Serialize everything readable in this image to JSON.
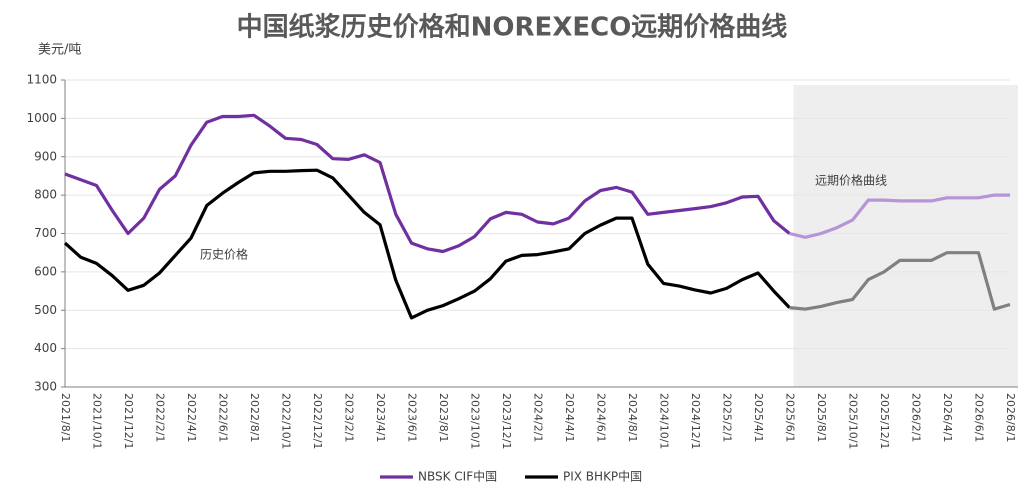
{
  "chart_data": {
    "type": "line",
    "title": "中国纸浆历史价格和NOREXECO远期价格曲线",
    "y_label": "美元/吨",
    "categories": [
      "2021/8/1",
      null,
      "2021/10/1",
      null,
      "2021/12/1",
      null,
      "2022/2/1",
      null,
      "2022/4/1",
      null,
      "2022/6/1",
      null,
      "2022/8/1",
      null,
      "2022/10/1",
      null,
      "2022/12/1",
      null,
      "2023/2/1",
      null,
      "2023/4/1",
      null,
      "2023/6/1",
      null,
      "2023/8/1",
      null,
      "2023/10/1",
      null,
      "2023/12/1",
      null,
      "2024/2/1",
      null,
      "2024/4/1",
      null,
      "2024/6/1",
      null,
      "2024/8/1",
      null,
      "2024/10/1",
      null,
      "2024/12/1",
      null,
      "2025/2/1",
      null,
      "2025/4/1",
      null,
      "2025/6/1",
      null,
      "2025/8/1",
      null,
      "2025/10/1",
      null,
      "2025/12/1",
      null,
      "2026/2/1",
      null,
      "2026/4/1",
      null,
      "2026/6/1",
      null,
      "2026/8/1"
    ],
    "series": [
      {
        "name": "NBSK CIF中国",
        "color": "#7030a0",
        "forward_color": "#b793d8",
        "values": [
          855,
          840,
          825,
          760,
          700,
          740,
          815,
          850,
          930,
          990,
          1005,
          1005,
          1008,
          980,
          948,
          945,
          932,
          895,
          893,
          905,
          885,
          750,
          675,
          660,
          653,
          668,
          692,
          738,
          755,
          750,
          730,
          725,
          740,
          785,
          812,
          820,
          808,
          750,
          755,
          760,
          765,
          770,
          780,
          795,
          797,
          733,
          700,
          690,
          700,
          715,
          735,
          787,
          787,
          785,
          785,
          785,
          793,
          793,
          793,
          800,
          800
        ]
      },
      {
        "name": "PIX BHKP中国",
        "color": "#000000",
        "forward_color": "#808080",
        "values": [
          675,
          638,
          622,
          590,
          552,
          565,
          597,
          643,
          688,
          773,
          805,
          833,
          858,
          862,
          862,
          864,
          865,
          845,
          800,
          755,
          723,
          578,
          480,
          500,
          512,
          530,
          550,
          582,
          628,
          643,
          645,
          652,
          660,
          700,
          722,
          740,
          740,
          620,
          570,
          563,
          553,
          545,
          557,
          580,
          597,
          550,
          507,
          503,
          510,
          520,
          528,
          580,
          600,
          630,
          630,
          630,
          650,
          650,
          650,
          503,
          515
        ]
      }
    ],
    "forward_from": 46,
    "annotations": [
      {
        "text": "历史价格"
      },
      {
        "text": "远期价格曲线"
      }
    ],
    "ylim": [
      300,
      1100
    ],
    "yticks": [
      300,
      400,
      500,
      600,
      700,
      800,
      900,
      1000,
      1100
    ],
    "grid": true,
    "legend": "bottom"
  }
}
